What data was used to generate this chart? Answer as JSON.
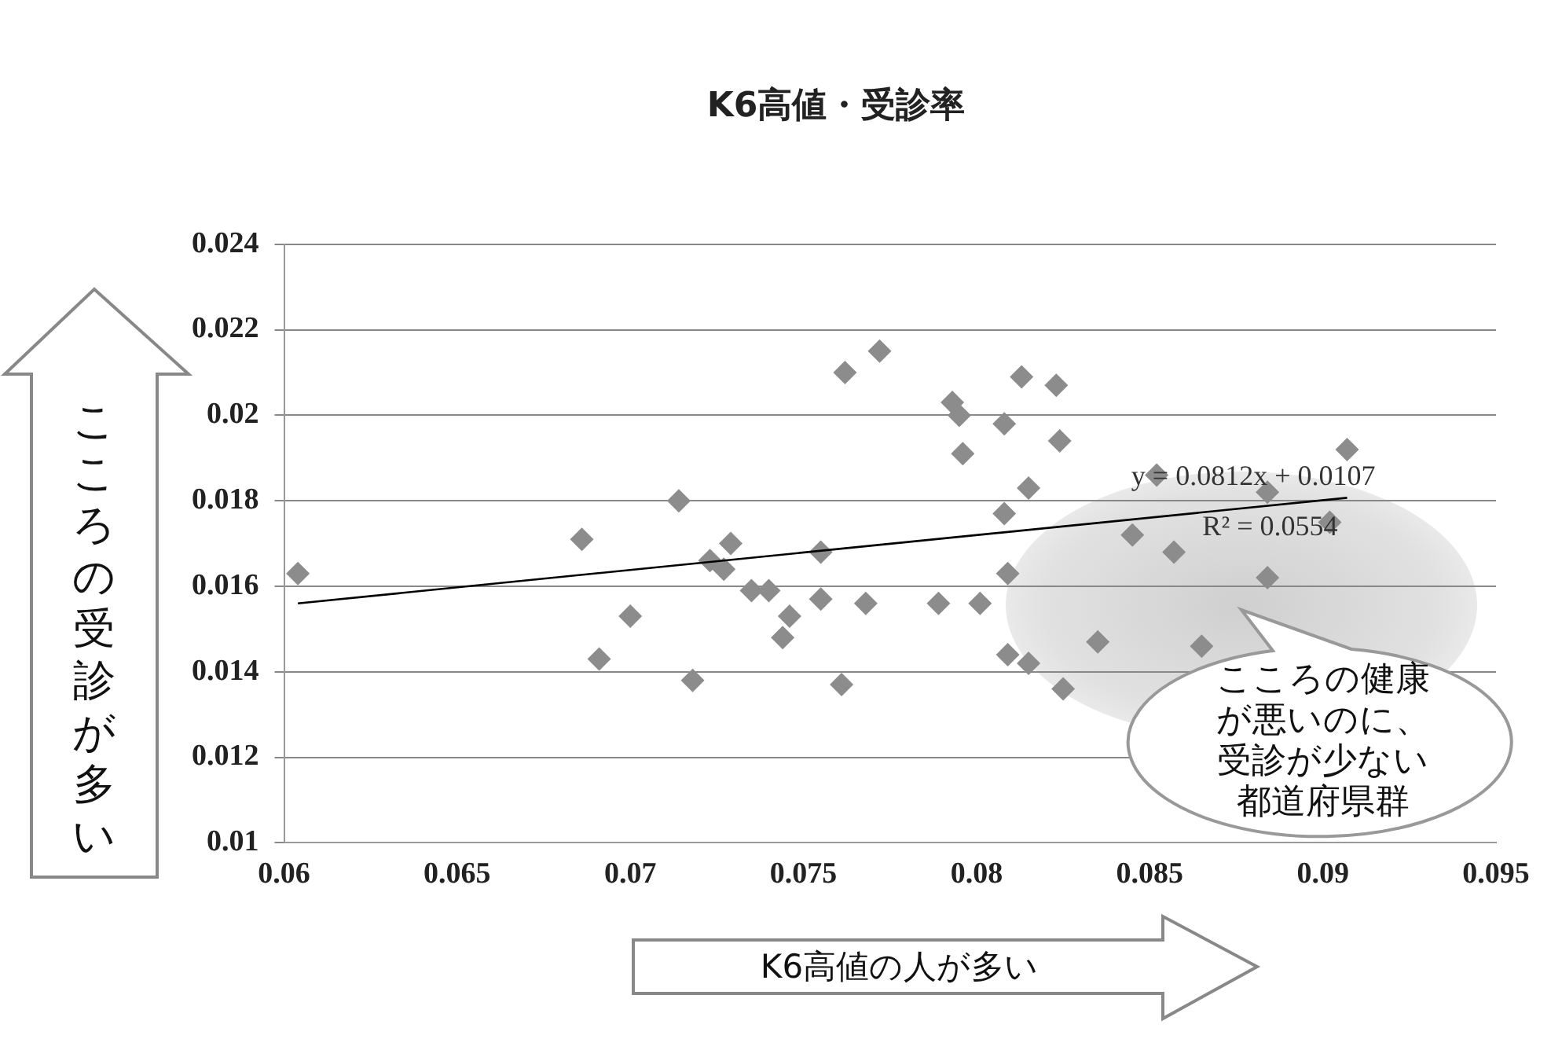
{
  "chart_data": {
    "type": "scatter",
    "title": "K6高値・受診率",
    "xlabel": "K6高値の人が多い",
    "ylabel": "こころの受診が多い",
    "series": [
      {
        "color": "#8c8c8c",
        "marker": "diamond",
        "x": [
          0.0604,
          0.0686,
          0.0691,
          0.07,
          0.0714,
          0.0718,
          0.0723,
          0.0727,
          0.0729,
          0.0735,
          0.074,
          0.0744,
          0.0746,
          0.0755,
          0.0755,
          0.0761,
          0.0762,
          0.0768,
          0.0772,
          0.0789,
          0.0793,
          0.0795,
          0.0796,
          0.0801,
          0.0808,
          0.0808,
          0.0809,
          0.0809,
          0.0813,
          0.0815,
          0.0815,
          0.0823,
          0.0824,
          0.0825,
          0.0835,
          0.0845,
          0.0852,
          0.0857,
          0.0865,
          0.0884,
          0.0884,
          0.0902,
          0.0907
        ],
        "values": [
          0.0163,
          0.0171,
          0.0143,
          0.0153,
          0.018,
          0.0138,
          0.0166,
          0.0164,
          0.017,
          0.0159,
          0.0159,
          0.0148,
          0.0153,
          0.0168,
          0.0157,
          0.0137,
          0.021,
          0.0156,
          0.0215,
          0.0156,
          0.0203,
          0.02,
          0.0191,
          0.0156,
          0.0198,
          0.0177,
          0.0163,
          0.0144,
          0.0209,
          0.0183,
          0.0142,
          0.0207,
          0.0194,
          0.0136,
          0.0147,
          0.0172,
          0.0186,
          0.0168,
          0.0146,
          0.0182,
          0.0162,
          0.0175,
          0.0192
        ]
      },
      {
        "type": "line",
        "color": "#000000",
        "marker": "none",
        "x": [
          0.0604,
          0.0907
        ],
        "values": [
          0.0156,
          0.01807
        ]
      }
    ],
    "xlim": [
      0.06,
      0.095
    ],
    "xticks": [
      0.06,
      0.065,
      0.07,
      0.075,
      0.08,
      0.085,
      0.09,
      0.095
    ],
    "ylim": [
      0.01,
      0.024
    ],
    "yticks": [
      0.01,
      0.012,
      0.014,
      0.016,
      0.018,
      0.02,
      0.022,
      0.024
    ],
    "grid": "y",
    "annotations": [
      "y = 0.0812x + 0.0107",
      "R² = 0.0554",
      "こころの健康が悪いのに、受診が少ない都道府県群"
    ]
  }
}
